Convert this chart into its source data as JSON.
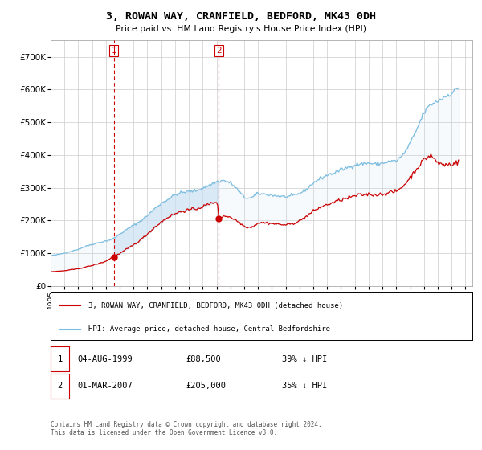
{
  "title": "3, ROWAN WAY, CRANFIELD, BEDFORD, MK43 0DH",
  "subtitle": "Price paid vs. HM Land Registry's House Price Index (HPI)",
  "ylim": [
    0,
    750000
  ],
  "yticks": [
    0,
    100000,
    200000,
    300000,
    400000,
    500000,
    600000,
    700000
  ],
  "ytick_labels": [
    "£0",
    "£100K",
    "£200K",
    "£300K",
    "£400K",
    "£500K",
    "£600K",
    "£700K"
  ],
  "hpi_color": "#7bbde0",
  "hpi_fill_color": "#c8dff2",
  "price_color": "#cc0000",
  "vline_color": "#cc0000",
  "grid_color": "#cccccc",
  "bg_color": "#ffffff",
  "legend_label_price": "3, ROWAN WAY, CRANFIELD, BEDFORD, MK43 0DH (detached house)",
  "legend_label_hpi": "HPI: Average price, detached house, Central Bedfordshire",
  "sale1_label": "1",
  "sale1_date": "04-AUG-1999",
  "sale1_price": "£88,500",
  "sale1_hpi": "39% ↓ HPI",
  "sale1_year": 1999.583,
  "sale1_value": 88500,
  "sale2_label": "2",
  "sale2_date": "01-MAR-2007",
  "sale2_price": "£205,000",
  "sale2_hpi": "35% ↓ HPI",
  "sale2_year": 2007.166,
  "sale2_value": 205000,
  "footer": "Contains HM Land Registry data © Crown copyright and database right 2024.\nThis data is licensed under the Open Government Licence v3.0.",
  "xlim_left": 1995,
  "xlim_right": 2025.5,
  "xtick_years": [
    1995,
    1996,
    1997,
    1998,
    1999,
    2000,
    2001,
    2002,
    2003,
    2004,
    2005,
    2006,
    2007,
    2008,
    2009,
    2010,
    2011,
    2012,
    2013,
    2014,
    2015,
    2016,
    2017,
    2018,
    2019,
    2020,
    2021,
    2022,
    2023,
    2024,
    2025
  ]
}
